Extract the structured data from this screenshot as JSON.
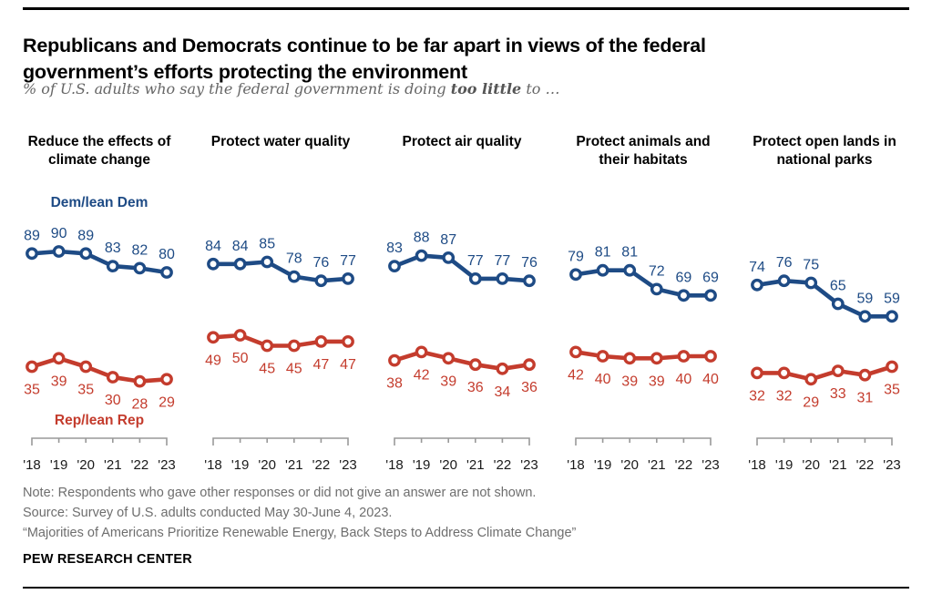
{
  "header": {
    "title_lines": [
      "Republicans and Democrats continue to be far apart in views of the federal",
      "government’s efforts protecting the environment"
    ],
    "subtitle_prefix": "% of U.S. adults who say the federal government is doing ",
    "subtitle_bold": "too little",
    "subtitle_suffix": " to …"
  },
  "legend": {
    "dem_label": "Dem/lean Dem",
    "rep_label": "Rep/lean Rep"
  },
  "colors": {
    "dem": "#1e4b85",
    "rep": "#c43c2d",
    "axis": "#999999",
    "year_text": "#1a1a1a"
  },
  "chart_data": [
    {
      "type": "line",
      "title": "Reduce the effects of climate change",
      "categories": [
        "'18",
        "'19",
        "'20",
        "'21",
        "'22",
        "'23"
      ],
      "series": [
        {
          "name": "Dem/lean Dem",
          "values": [
            89,
            90,
            89,
            83,
            82,
            80
          ]
        },
        {
          "name": "Rep/lean Rep",
          "values": [
            35,
            39,
            35,
            30,
            28,
            29
          ]
        }
      ],
      "ylim": [
        0,
        100
      ],
      "grid": false,
      "legend_position": "inline-first-panel"
    },
    {
      "type": "line",
      "title": "Protect water quality",
      "categories": [
        "'18",
        "'19",
        "'20",
        "'21",
        "'22",
        "'23"
      ],
      "series": [
        {
          "name": "Dem/lean Dem",
          "values": [
            84,
            84,
            85,
            78,
            76,
            77
          ]
        },
        {
          "name": "Rep/lean Rep",
          "values": [
            49,
            50,
            45,
            45,
            47,
            47
          ]
        }
      ],
      "ylim": [
        0,
        100
      ],
      "grid": false
    },
    {
      "type": "line",
      "title": "Protect air quality",
      "categories": [
        "'18",
        "'19",
        "'20",
        "'21",
        "'22",
        "'23"
      ],
      "series": [
        {
          "name": "Dem/lean Dem",
          "values": [
            83,
            88,
            87,
            77,
            77,
            76
          ]
        },
        {
          "name": "Rep/lean Rep",
          "values": [
            38,
            42,
            39,
            36,
            34,
            36
          ]
        }
      ],
      "ylim": [
        0,
        100
      ],
      "grid": false
    },
    {
      "type": "line",
      "title": "Protect animals and their habitats",
      "categories": [
        "'18",
        "'19",
        "'20",
        "'21",
        "'22",
        "'23"
      ],
      "series": [
        {
          "name": "Dem/lean Dem",
          "values": [
            79,
            81,
            81,
            72,
            69,
            69
          ]
        },
        {
          "name": "Rep/lean Rep",
          "values": [
            42,
            40,
            39,
            39,
            40,
            40
          ]
        }
      ],
      "ylim": [
        0,
        100
      ],
      "grid": false
    },
    {
      "type": "line",
      "title": "Protect open lands in national parks",
      "categories": [
        "'18",
        "'19",
        "'20",
        "'21",
        "'22",
        "'23"
      ],
      "series": [
        {
          "name": "Dem/lean Dem",
          "values": [
            74,
            76,
            75,
            65,
            59,
            59
          ]
        },
        {
          "name": "Rep/lean Rep",
          "values": [
            32,
            32,
            29,
            33,
            31,
            35
          ]
        }
      ],
      "ylim": [
        0,
        100
      ],
      "grid": false
    }
  ],
  "footer": {
    "note": "Note: Respondents who gave other responses or did not give an answer are not shown.",
    "source": "Source: Survey of U.S. adults conducted May 30-June 4, 2023.",
    "quote": "“Majorities of Americans Prioritize Renewable Energy, Back Steps to Address Climate Change”",
    "brand": "PEW RESEARCH CENTER"
  }
}
